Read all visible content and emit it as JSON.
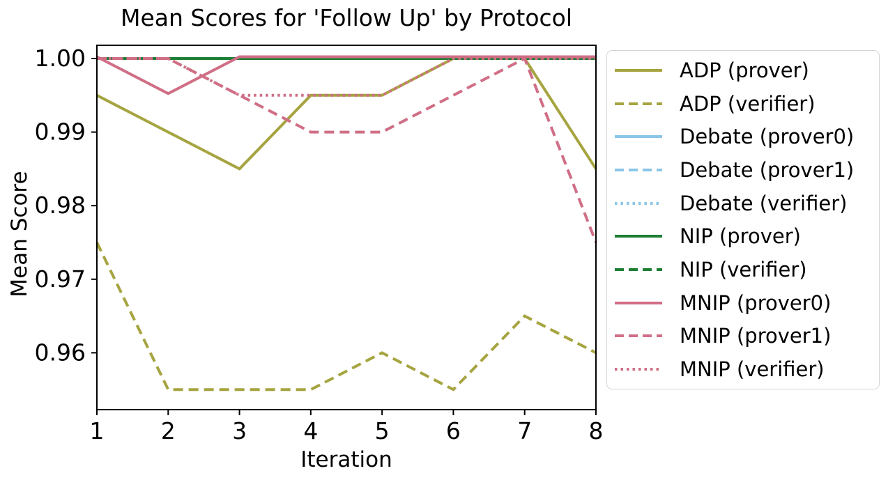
{
  "chart_data": {
    "type": "line",
    "title": "Mean Scores for 'Follow Up' by Protocol",
    "xlabel": "Iteration",
    "ylabel": "Mean Score",
    "x": [
      1,
      2,
      3,
      4,
      5,
      6,
      7,
      8
    ],
    "xlim": [
      1,
      8
    ],
    "ylim": [
      0.952,
      1.002
    ],
    "xtick_labels": [
      "1",
      "2",
      "3",
      "4",
      "5",
      "6",
      "7",
      "8"
    ],
    "ytick_values": [
      1.0,
      0.99,
      0.98,
      0.97,
      0.96
    ],
    "ytick_labels": [
      "1.00",
      "0.99",
      "0.98",
      "0.97",
      "0.96"
    ],
    "grid": false,
    "legend_position": "right-outside",
    "series": [
      {
        "name": "ADP (prover)",
        "color": "#a6a440",
        "style": "solid",
        "values": [
          0.995,
          0.99,
          0.985,
          0.995,
          0.995,
          1.0,
          1.0,
          0.985
        ]
      },
      {
        "name": "ADP (verifier)",
        "color": "#a6a440",
        "style": "dashed",
        "values": [
          0.975,
          0.955,
          0.955,
          0.955,
          0.96,
          0.955,
          0.965,
          0.96
        ]
      },
      {
        "name": "Debate (prover0)",
        "color": "#8ac6e8",
        "style": "solid",
        "values": [
          1.0,
          1.0,
          1.0,
          1.0,
          1.0,
          1.0,
          1.0,
          1.0
        ]
      },
      {
        "name": "Debate (prover1)",
        "color": "#8ac6e8",
        "style": "dashed",
        "values": [
          1.0,
          1.0,
          1.0,
          1.0,
          1.0,
          1.0,
          1.0,
          1.0
        ]
      },
      {
        "name": "Debate (verifier)",
        "color": "#8ac6e8",
        "style": "dotted",
        "values": [
          1.0,
          1.0,
          1.0,
          1.0,
          1.0,
          1.0,
          1.0,
          1.0
        ]
      },
      {
        "name": "NIP (prover)",
        "color": "#1e7e34",
        "style": "solid",
        "values": [
          1.0,
          1.0,
          1.0,
          1.0,
          1.0,
          1.0,
          1.0,
          1.0
        ]
      },
      {
        "name": "NIP (verifier)",
        "color": "#1e7e34",
        "style": "dashed",
        "values": [
          1.0,
          1.0,
          1.0,
          1.0,
          1.0,
          1.0,
          1.0,
          1.0
        ]
      },
      {
        "name": "MNIP (prover0)",
        "color": "#d06e86",
        "style": "solid",
        "values": [
          1.0,
          0.995,
          1.0,
          1.0,
          1.0,
          1.0,
          1.0,
          1.0
        ]
      },
      {
        "name": "MNIP (prover1)",
        "color": "#d06e86",
        "style": "dashed",
        "values": [
          1.0,
          1.0,
          0.995,
          0.99,
          0.99,
          0.995,
          1.0,
          0.975
        ]
      },
      {
        "name": "MNIP (verifier)",
        "color": "#d06e86",
        "style": "dotted",
        "values": [
          1.0,
          1.0,
          0.995,
          0.995,
          0.995,
          1.0,
          1.0,
          1.0
        ]
      }
    ]
  }
}
